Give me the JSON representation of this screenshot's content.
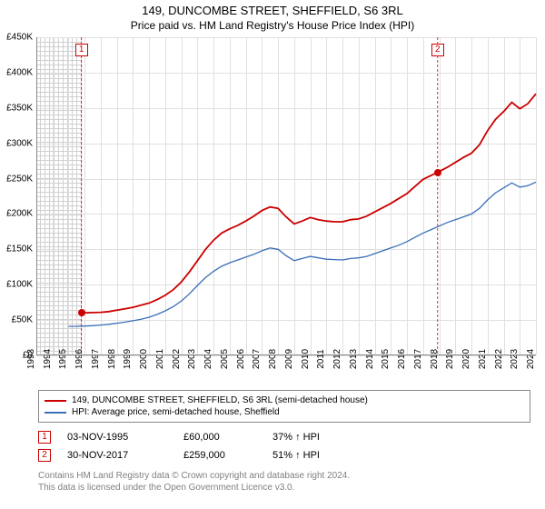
{
  "title": "149, DUNCOMBE STREET, SHEFFIELD, S6 3RL",
  "subtitle": "Price paid vs. HM Land Registry's House Price Index (HPI)",
  "chart": {
    "type": "line",
    "background_color": "#ffffff",
    "grid_color": "#e0e0e0",
    "axis_color": "#888888",
    "x": {
      "min": 1993,
      "max": 2024,
      "tick_step": 1,
      "label_fontsize": 10
    },
    "y": {
      "min": 0,
      "max": 450000,
      "tick_step": 50000,
      "prefix": "£",
      "labels": [
        "£0",
        "£50K",
        "£100K",
        "£150K",
        "£200K",
        "£250K",
        "£300K",
        "£350K",
        "£400K",
        "£450K"
      ],
      "label_fontsize": 10
    },
    "hatch_left_until": 1995.8,
    "series": [
      {
        "name": "149, DUNCOMBE STREET, SHEFFIELD, S6 3RL (semi-detached house)",
        "color": "#cc0000",
        "line_width": 1.8,
        "points": [
          [
            1995.8,
            60000
          ],
          [
            1996.5,
            60500
          ],
          [
            1997,
            61000
          ],
          [
            1997.5,
            62000
          ],
          [
            1998,
            64000
          ],
          [
            1998.5,
            66000
          ],
          [
            1999,
            68000
          ],
          [
            1999.5,
            71000
          ],
          [
            2000,
            74000
          ],
          [
            2000.5,
            79000
          ],
          [
            2001,
            85000
          ],
          [
            2001.5,
            93000
          ],
          [
            2002,
            104000
          ],
          [
            2002.5,
            118000
          ],
          [
            2003,
            134000
          ],
          [
            2003.5,
            150000
          ],
          [
            2004,
            163000
          ],
          [
            2004.5,
            173000
          ],
          [
            2005,
            179000
          ],
          [
            2005.5,
            184000
          ],
          [
            2006,
            190000
          ],
          [
            2006.5,
            197000
          ],
          [
            2007,
            205000
          ],
          [
            2007.5,
            210000
          ],
          [
            2008,
            208000
          ],
          [
            2008.5,
            196000
          ],
          [
            2009,
            186000
          ],
          [
            2009.5,
            190000
          ],
          [
            2010,
            195000
          ],
          [
            2010.5,
            192000
          ],
          [
            2011,
            190000
          ],
          [
            2011.5,
            189000
          ],
          [
            2012,
            189000
          ],
          [
            2012.5,
            192000
          ],
          [
            2013,
            193000
          ],
          [
            2013.5,
            197000
          ],
          [
            2014,
            203000
          ],
          [
            2014.5,
            209000
          ],
          [
            2015,
            215000
          ],
          [
            2015.5,
            222000
          ],
          [
            2016,
            229000
          ],
          [
            2016.5,
            239000
          ],
          [
            2017,
            249000
          ],
          [
            2017.9,
            259000
          ],
          [
            2018.5,
            266000
          ],
          [
            2019,
            273000
          ],
          [
            2019.5,
            280000
          ],
          [
            2020,
            286000
          ],
          [
            2020.5,
            298000
          ],
          [
            2021,
            318000
          ],
          [
            2021.5,
            334000
          ],
          [
            2022,
            345000
          ],
          [
            2022.5,
            358000
          ],
          [
            2023,
            349000
          ],
          [
            2023.5,
            356000
          ],
          [
            2024,
            370000
          ]
        ]
      },
      {
        "name": "HPI: Average price, semi-detached house, Sheffield",
        "color": "#3a6fb7",
        "line_width": 1.3,
        "points": [
          [
            1995,
            41000
          ],
          [
            1995.5,
            41200
          ],
          [
            1996,
            41500
          ],
          [
            1996.5,
            42000
          ],
          [
            1997,
            43000
          ],
          [
            1997.5,
            44000
          ],
          [
            1998,
            45500
          ],
          [
            1998.5,
            47000
          ],
          [
            1999,
            49000
          ],
          [
            1999.5,
            51000
          ],
          [
            2000,
            54000
          ],
          [
            2000.5,
            58000
          ],
          [
            2001,
            63000
          ],
          [
            2001.5,
            69000
          ],
          [
            2002,
            77000
          ],
          [
            2002.5,
            87000
          ],
          [
            2003,
            99000
          ],
          [
            2003.5,
            110000
          ],
          [
            2004,
            119000
          ],
          [
            2004.5,
            126000
          ],
          [
            2005,
            131000
          ],
          [
            2005.5,
            135000
          ],
          [
            2006,
            139000
          ],
          [
            2006.5,
            143000
          ],
          [
            2007,
            148000
          ],
          [
            2007.5,
            152000
          ],
          [
            2008,
            150000
          ],
          [
            2008.5,
            141000
          ],
          [
            2009,
            134000
          ],
          [
            2009.5,
            137000
          ],
          [
            2010,
            140000
          ],
          [
            2010.5,
            138000
          ],
          [
            2011,
            136000
          ],
          [
            2011.5,
            135500
          ],
          [
            2012,
            135000
          ],
          [
            2012.5,
            137000
          ],
          [
            2013,
            138000
          ],
          [
            2013.5,
            140000
          ],
          [
            2014,
            144000
          ],
          [
            2014.5,
            148000
          ],
          [
            2015,
            152000
          ],
          [
            2015.5,
            156000
          ],
          [
            2016,
            161000
          ],
          [
            2016.5,
            167000
          ],
          [
            2017,
            173000
          ],
          [
            2017.5,
            178000
          ],
          [
            2018,
            183000
          ],
          [
            2018.5,
            188000
          ],
          [
            2019,
            192000
          ],
          [
            2019.5,
            196000
          ],
          [
            2020,
            200000
          ],
          [
            2020.5,
            208000
          ],
          [
            2021,
            220000
          ],
          [
            2021.5,
            230000
          ],
          [
            2022,
            237000
          ],
          [
            2022.5,
            244000
          ],
          [
            2023,
            238000
          ],
          [
            2023.5,
            240000
          ],
          [
            2024,
            245000
          ]
        ]
      }
    ],
    "markers": [
      {
        "num": "1",
        "x": 1995.8,
        "y": 60000,
        "label_y": 445000
      },
      {
        "num": "2",
        "x": 2017.9,
        "y": 259000,
        "label_y": 445000
      }
    ]
  },
  "legend": [
    {
      "color": "#cc0000",
      "label": "149, DUNCOMBE STREET, SHEFFIELD, S6 3RL (semi-detached house)"
    },
    {
      "color": "#3a6fb7",
      "label": "HPI: Average price, semi-detached house, Sheffield"
    }
  ],
  "transactions": [
    {
      "num": "1",
      "date": "03-NOV-1995",
      "price": "£60,000",
      "diff": "37% ↑ HPI"
    },
    {
      "num": "2",
      "date": "30-NOV-2017",
      "price": "£259,000",
      "diff": "51% ↑ HPI"
    }
  ],
  "footer": {
    "line1": "Contains HM Land Registry data © Crown copyright and database right 2024.",
    "line2": "This data is licensed under the Open Government Licence v3.0."
  }
}
